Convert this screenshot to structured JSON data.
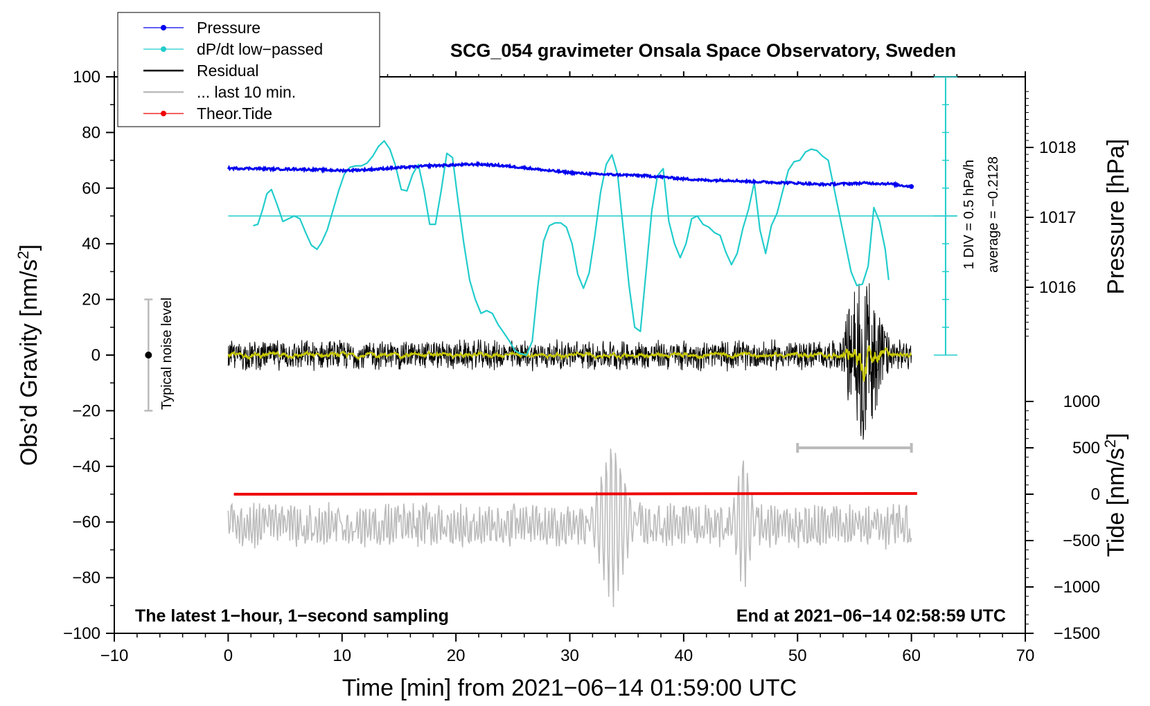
{
  "chart_data": {
    "type": "line",
    "title": "SCG_054 gravimeter Onsala Space Observatory, Sweden",
    "xlabel": "Time [min] from 2021−06−14 01:59:00 UTC",
    "ylabel_left": "Obs’d Gravity [nm/s",
    "ylabel_left_sup": "2",
    "ylabel_left_end": "]",
    "ylabel_right_pressure": "Pressure [hPa]",
    "ylabel_right_tide": "Tide [nm/s",
    "ylabel_right_tide_sup": "2",
    "ylabel_right_tide_end": "]",
    "xlim": [
      -10,
      70
    ],
    "ylim": [
      -100,
      100
    ],
    "x_ticks": [
      "−10",
      "0",
      "10",
      "20",
      "30",
      "40",
      "50",
      "60",
      "70"
    ],
    "y_ticks": [
      "−100",
      "−80",
      "−60",
      "−40",
      "−20",
      "0",
      "20",
      "40",
      "60",
      "80",
      "100"
    ],
    "pressure_axis": {
      "ticks": [
        "1016",
        "1017",
        "1018"
      ],
      "values": [
        1016,
        1017,
        1018
      ]
    },
    "tide_axis": {
      "ticks": [
        "−1500",
        "−1000",
        "−500",
        "0",
        "500",
        "1000"
      ],
      "values": [
        -1500,
        -1000,
        -500,
        0,
        500,
        1000
      ]
    },
    "legend": [
      {
        "label": "Pressure",
        "color": "#0000ee",
        "marker": true
      },
      {
        "label": "dP/dt low−passed",
        "color": "#22cccc",
        "marker": true
      },
      {
        "label": "Residual",
        "color": "#000000",
        "marker": false
      },
      {
        "label": "... last 10 min.",
        "color": "#bbbbbb",
        "marker": false
      },
      {
        "label": "Theor.Tide",
        "color": "#ee0000",
        "marker": true
      }
    ],
    "annotations": {
      "left_bottom": "The latest 1−hour, 1−second sampling",
      "right_bottom": "End at 2021−06−14 02:58:59 UTC",
      "noise_label": "Typical noise level",
      "dpdt_scale": "1 DIV = 0.5 hPa/h",
      "dpdt_average": "average = −0.2128"
    },
    "noise_bar": {
      "x": -7,
      "center": 0,
      "half_range": 20
    },
    "last10_bar": {
      "x_start": 50,
      "x_end": 60
    },
    "series": [
      {
        "name": "Pressure",
        "unit": "hPa",
        "color": "#0000ee",
        "x": [
          0,
          2,
          4,
          6,
          8,
          10,
          12,
          14,
          16,
          18,
          20,
          22,
          24,
          26,
          28,
          30,
          32,
          34,
          36,
          38,
          40,
          42,
          44,
          46,
          48,
          50,
          52,
          54,
          56,
          58,
          60
        ],
        "values": [
          1017.7,
          1017.7,
          1017.69,
          1017.69,
          1017.68,
          1017.67,
          1017.68,
          1017.7,
          1017.72,
          1017.74,
          1017.75,
          1017.76,
          1017.74,
          1017.71,
          1017.67,
          1017.64,
          1017.62,
          1017.61,
          1017.6,
          1017.58,
          1017.55,
          1017.53,
          1017.53,
          1017.51,
          1017.5,
          1017.49,
          1017.47,
          1017.48,
          1017.49,
          1017.48,
          1017.44
        ]
      },
      {
        "name": "dP/dt low−passed",
        "unit": "DIV (0.5 hPa/h), 0 at gravity 50, 1 DIV = 10 gravity units",
        "color": "#22cccc",
        "x": [
          2.2,
          2.6,
          3,
          3.4,
          3.8,
          4.3,
          4.8,
          5.3,
          5.8,
          6.3,
          6.8,
          7.3,
          7.8,
          8.2,
          8.7,
          9.2,
          9.7,
          10.2,
          10.7,
          11.2,
          11.7,
          12.2,
          12.7,
          13.2,
          13.7,
          14.2,
          14.7,
          15.2,
          15.7,
          16.2,
          16.7,
          17.2,
          17.7,
          18.2,
          18.7,
          19.2,
          19.7,
          20.2,
          20.7,
          21.2,
          21.7,
          22.2,
          22.7,
          23.2,
          23.7,
          24.2,
          24.7,
          25.2,
          25.7,
          26.2,
          26.7,
          27.2,
          27.7,
          28.2,
          28.7,
          29.2,
          29.7,
          30.2,
          30.7,
          31.2,
          31.7,
          32.2,
          32.7,
          33.2,
          33.7,
          34.2,
          34.7,
          35.2,
          35.7,
          36.2,
          36.7,
          37.2,
          37.7,
          38.2,
          38.7,
          39.2,
          39.7,
          40.2,
          40.7,
          41.2,
          41.7,
          42.2,
          42.7,
          43.2,
          43.7,
          44.2,
          44.7,
          45.2,
          45.7,
          46.2,
          46.7,
          47.2,
          47.7,
          48.2,
          48.7,
          49.2,
          49.7,
          50.2,
          50.7,
          51.2,
          51.7,
          52.2,
          52.7,
          53.2,
          53.7,
          54.2,
          54.7,
          55.2,
          55.7,
          56.2,
          56.7,
          57.2,
          57.7,
          58.0
        ],
        "values": [
          -0.35,
          -0.3,
          0.2,
          0.8,
          0.95,
          0.4,
          -0.2,
          -0.1,
          0.0,
          -0.1,
          -0.6,
          -1.05,
          -1.2,
          -0.95,
          -0.5,
          0.2,
          0.9,
          1.5,
          1.75,
          1.8,
          1.8,
          1.9,
          2.15,
          2.5,
          2.7,
          2.4,
          1.8,
          0.95,
          0.9,
          1.5,
          1.85,
          0.9,
          -0.3,
          -0.3,
          0.9,
          2.25,
          2.1,
          0.5,
          -1.0,
          -2.3,
          -3.0,
          -3.5,
          -3.4,
          -3.5,
          -3.9,
          -4.2,
          -4.5,
          -4.85,
          -4.95,
          -5.0,
          -4.5,
          -2.5,
          -0.9,
          -0.35,
          -0.25,
          -0.25,
          -0.4,
          -1.0,
          -2.1,
          -2.6,
          -2.05,
          -0.7,
          0.85,
          1.85,
          2.2,
          1.5,
          -0.5,
          -2.5,
          -4.0,
          -4.15,
          -2.0,
          0.2,
          1.45,
          1.7,
          -0.2,
          -1.0,
          -1.5,
          -1.0,
          -0.1,
          0.0,
          -0.3,
          -0.4,
          -0.6,
          -0.7,
          -1.3,
          -1.75,
          -1.35,
          -0.45,
          0.25,
          1.2,
          -0.5,
          -1.35,
          -0.35,
          0.1,
          0.9,
          1.65,
          1.95,
          2.0,
          2.3,
          2.4,
          2.35,
          2.15,
          2.0,
          1.0,
          0.0,
          -1.0,
          -2.0,
          -2.5,
          -2.45,
          -1.8,
          0.3,
          -0.2,
          -1.2,
          -2.3
        ]
      },
      {
        "name": "Residual",
        "unit": "nm/s2",
        "color": "#000000",
        "x_range": [
          0,
          60
        ],
        "amplitude": 5,
        "burst": {
          "x_range": [
            54,
            58.5
          ],
          "min": -33,
          "max": 32
        }
      },
      {
        "name": "... last 10 min.",
        "unit": "nm/s2 (offset plotted at -60)",
        "color": "#bbbbbb",
        "x_range": [
          0,
          60
        ],
        "center": -60,
        "burst_1": {
          "x_range": [
            31.5,
            36.0
          ],
          "min": -94,
          "max": -30
        },
        "burst_2": {
          "x_range": [
            44.0,
            46.5
          ],
          "min": -87,
          "max": -45
        }
      },
      {
        "name": "Theor.Tide",
        "unit": "nm/s2",
        "color": "#ee0000",
        "x": [
          0.5,
          60.5
        ],
        "values": [
          0,
          0
        ]
      }
    ]
  }
}
